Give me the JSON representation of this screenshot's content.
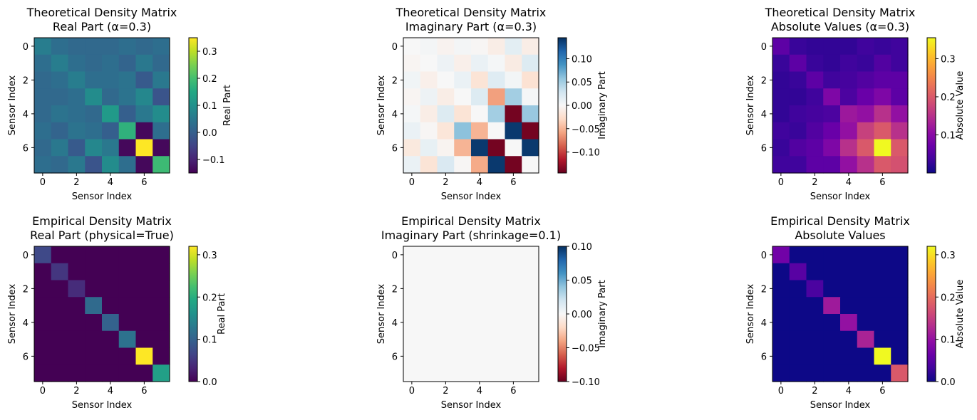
{
  "figure": {
    "type": "heatmap-grid",
    "rows": 2,
    "cols": 3
  },
  "chart_data": [
    {
      "type": "heatmap",
      "title": "Theoretical Density Matrix\nReal Part (α=0.3)",
      "xlabel": "Sensor Index",
      "ylabel": "Sensor Index",
      "colorbar_label": "Real Part",
      "colormap": "viridis",
      "vmin": -0.15,
      "vmax": 0.35,
      "x_ticks": [
        0,
        2,
        4,
        6
      ],
      "y_ticks": [
        0,
        2,
        4,
        6
      ],
      "cbar_ticks": [
        -0.1,
        0.0,
        0.1,
        0.2,
        0.3
      ],
      "cbar_tick_labels": [
        "−0.1",
        "0.0",
        "0.1",
        "0.2",
        "0.3"
      ],
      "matrix": [
        [
          0.06,
          0.03,
          0.02,
          0.02,
          0.02,
          0.03,
          0.02,
          0.03
        ],
        [
          0.03,
          0.06,
          0.03,
          0.02,
          0.03,
          0.01,
          0.05,
          0.02
        ],
        [
          0.02,
          0.03,
          0.06,
          0.03,
          0.03,
          0.04,
          -0.01,
          0.05
        ],
        [
          0.02,
          0.02,
          0.03,
          0.09,
          0.02,
          0.04,
          0.08,
          -0.02
        ],
        [
          0.02,
          0.04,
          0.03,
          0.02,
          0.12,
          0.0,
          0.05,
          0.09
        ],
        [
          0.03,
          0.01,
          0.04,
          0.03,
          0.0,
          0.17,
          -0.14,
          0.03
        ],
        [
          0.02,
          0.05,
          -0.01,
          0.08,
          0.05,
          -0.14,
          0.35,
          -0.14
        ],
        [
          0.03,
          0.02,
          0.05,
          -0.02,
          0.09,
          0.03,
          -0.14,
          0.19
        ]
      ]
    },
    {
      "type": "heatmap",
      "title": "Theoretical Density Matrix\nImaginary Part (α=0.3)",
      "xlabel": "Sensor Index",
      "ylabel": "Sensor Index",
      "colorbar_label": "Imaginary Part",
      "colormap": "RdBu",
      "vmin": -0.145,
      "vmax": 0.145,
      "x_ticks": [
        0,
        2,
        4,
        6
      ],
      "y_ticks": [
        0,
        2,
        4,
        6
      ],
      "cbar_ticks": [
        -0.1,
        -0.05,
        0.0,
        0.05,
        0.1
      ],
      "cbar_tick_labels": [
        "−0.10",
        "−0.05",
        "0.00",
        "0.05",
        "0.10"
      ],
      "matrix": [
        [
          0.0,
          0.003,
          -0.005,
          0.003,
          -0.002,
          -0.01,
          0.015,
          -0.01
        ],
        [
          -0.003,
          0.0,
          0.008,
          -0.008,
          0.01,
          0.002,
          -0.012,
          0.02
        ],
        [
          0.005,
          -0.008,
          0.0,
          0.01,
          -0.02,
          0.018,
          0.004,
          -0.022
        ],
        [
          -0.003,
          0.008,
          -0.01,
          0.0,
          0.02,
          -0.06,
          0.05,
          0.002
        ],
        [
          0.002,
          -0.01,
          0.02,
          -0.02,
          0.0,
          0.05,
          -0.14,
          0.055
        ],
        [
          0.01,
          -0.002,
          -0.018,
          0.06,
          -0.05,
          0.0,
          0.14,
          -0.14
        ],
        [
          -0.015,
          0.012,
          -0.004,
          -0.05,
          0.14,
          -0.14,
          0.0,
          0.14
        ],
        [
          0.01,
          -0.02,
          0.022,
          -0.002,
          -0.055,
          0.14,
          -0.14,
          0.0
        ]
      ]
    },
    {
      "type": "heatmap",
      "title": "Theoretical Density Matrix\nAbsolute Values (α=0.3)",
      "xlabel": "Sensor Index",
      "ylabel": "Sensor Index",
      "colorbar_label": "Absolute Value",
      "colormap": "plasma",
      "vmin": 0.0,
      "vmax": 0.355,
      "x_ticks": [
        0,
        2,
        4,
        6
      ],
      "y_ticks": [
        0,
        2,
        4,
        6
      ],
      "cbar_ticks": [
        0.1,
        0.2,
        0.3
      ],
      "cbar_tick_labels": [
        "0.1",
        "0.2",
        "0.3"
      ],
      "matrix": [
        [
          0.06,
          0.03,
          0.025,
          0.025,
          0.025,
          0.035,
          0.03,
          0.035
        ],
        [
          0.03,
          0.06,
          0.03,
          0.025,
          0.035,
          0.03,
          0.05,
          0.035
        ],
        [
          0.025,
          0.03,
          0.06,
          0.035,
          0.04,
          0.05,
          0.06,
          0.06
        ],
        [
          0.025,
          0.025,
          0.035,
          0.09,
          0.045,
          0.07,
          0.09,
          0.06
        ],
        [
          0.025,
          0.035,
          0.04,
          0.045,
          0.12,
          0.11,
          0.15,
          0.11
        ],
        [
          0.035,
          0.03,
          0.05,
          0.07,
          0.11,
          0.17,
          0.2,
          0.15
        ],
        [
          0.03,
          0.05,
          0.06,
          0.09,
          0.15,
          0.2,
          0.355,
          0.2
        ],
        [
          0.035,
          0.035,
          0.06,
          0.06,
          0.11,
          0.15,
          0.2,
          0.19
        ]
      ]
    },
    {
      "type": "heatmap",
      "title": "Empirical Density Matrix\nReal Part (physical=True)",
      "xlabel": "Sensor Index",
      "ylabel": "Sensor Index",
      "colorbar_label": "Real Part",
      "colormap": "viridis",
      "vmin": 0.0,
      "vmax": 0.32,
      "x_ticks": [
        0,
        2,
        4,
        6
      ],
      "y_ticks": [
        0,
        2,
        4,
        6
      ],
      "cbar_ticks": [
        0.0,
        0.1,
        0.2,
        0.3
      ],
      "cbar_tick_labels": [
        "0.0",
        "0.1",
        "0.2",
        "0.3"
      ],
      "matrix": [
        [
          0.07,
          0,
          0,
          0,
          0,
          0,
          0,
          0
        ],
        [
          0,
          0.05,
          0,
          0,
          0,
          0,
          0,
          0
        ],
        [
          0,
          0,
          0.04,
          0,
          0,
          0,
          0,
          0
        ],
        [
          0,
          0,
          0,
          0.11,
          0,
          0,
          0,
          0
        ],
        [
          0,
          0,
          0,
          0,
          0.1,
          0,
          0,
          0
        ],
        [
          0,
          0,
          0,
          0,
          0,
          0.12,
          0,
          0
        ],
        [
          0,
          0,
          0,
          0,
          0,
          0,
          0.32,
          0
        ],
        [
          0,
          0,
          0,
          0,
          0,
          0,
          0,
          0.18
        ]
      ]
    },
    {
      "type": "heatmap",
      "title": "Empirical Density Matrix\nImaginary Part (shrinkage=0.1)",
      "xlabel": "Sensor Index",
      "ylabel": "Sensor Index",
      "colorbar_label": "Imaginary Part",
      "colormap": "RdBu",
      "vmin": -0.1,
      "vmax": 0.1,
      "x_ticks": [
        0,
        2,
        4,
        6
      ],
      "y_ticks": [
        0,
        2,
        4,
        6
      ],
      "cbar_ticks": [
        -0.1,
        -0.05,
        0.0,
        0.05,
        0.1
      ],
      "cbar_tick_labels": [
        "−0.10",
        "−0.05",
        "0.00",
        "0.05",
        "0.10"
      ],
      "matrix": [
        [
          0,
          0,
          0,
          0,
          0,
          0,
          0,
          0
        ],
        [
          0,
          0,
          0,
          0,
          0,
          0,
          0,
          0
        ],
        [
          0,
          0,
          0,
          0,
          0,
          0,
          0,
          0
        ],
        [
          0,
          0,
          0,
          0,
          0,
          0,
          0,
          0
        ],
        [
          0,
          0,
          0,
          0,
          0,
          0,
          0,
          0
        ],
        [
          0,
          0,
          0,
          0,
          0,
          0,
          0,
          0
        ],
        [
          0,
          0,
          0,
          0,
          0,
          0,
          0,
          0
        ],
        [
          0,
          0,
          0,
          0,
          0,
          0,
          0,
          0
        ]
      ]
    },
    {
      "type": "heatmap",
      "title": "Empirical Density Matrix\nAbsolute Values",
      "xlabel": "Sensor Index",
      "ylabel": "Sensor Index",
      "colorbar_label": "Absolute Value",
      "colormap": "plasma",
      "vmin": 0.0,
      "vmax": 0.32,
      "x_ticks": [
        0,
        2,
        4,
        6
      ],
      "y_ticks": [
        0,
        2,
        4,
        6
      ],
      "cbar_ticks": [
        0.0,
        0.1,
        0.2,
        0.3
      ],
      "cbar_tick_labels": [
        "0.0",
        "0.1",
        "0.2",
        "0.3"
      ],
      "matrix": [
        [
          0.07,
          0,
          0,
          0,
          0,
          0,
          0,
          0
        ],
        [
          0,
          0.05,
          0,
          0,
          0,
          0,
          0,
          0
        ],
        [
          0,
          0,
          0.04,
          0,
          0,
          0,
          0,
          0
        ],
        [
          0,
          0,
          0,
          0.11,
          0,
          0,
          0,
          0
        ],
        [
          0,
          0,
          0,
          0,
          0.1,
          0,
          0,
          0
        ],
        [
          0,
          0,
          0,
          0,
          0,
          0.12,
          0,
          0
        ],
        [
          0,
          0,
          0,
          0,
          0,
          0,
          0.32,
          0
        ],
        [
          0,
          0,
          0,
          0,
          0,
          0,
          0,
          0.18
        ]
      ]
    }
  ]
}
